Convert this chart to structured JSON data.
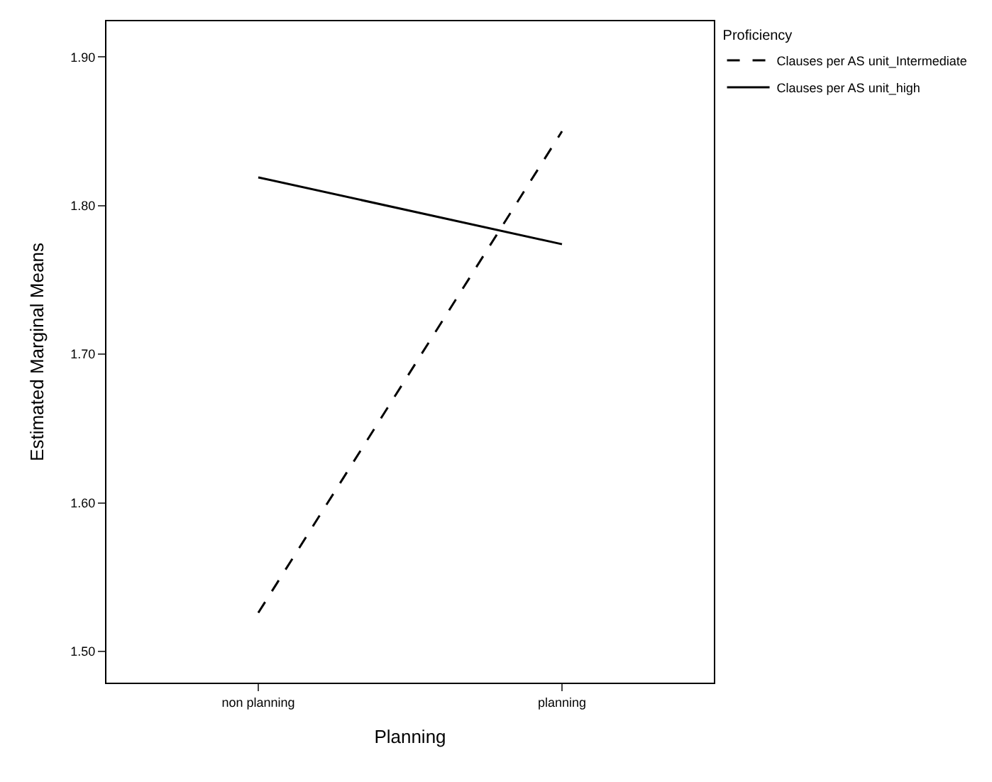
{
  "chart_data": {
    "type": "line",
    "xlabel": "Planning",
    "ylabel": "Estimated Marginal Means",
    "legend_title": "Proficiency",
    "categories": [
      "non planning",
      "planning"
    ],
    "series": [
      {
        "name": "Clauses per AS unit_Intermediate",
        "color": "#000000",
        "line_style": "dashed",
        "values": [
          1.526,
          1.85
        ]
      },
      {
        "name": "Clauses per AS unit_high",
        "color": "#000000",
        "line_style": "solid",
        "values": [
          1.819,
          1.774
        ]
      }
    ],
    "ylim": [
      1.479,
      1.924
    ],
    "yticks": [
      {
        "value": 1.5,
        "label": "1.50"
      },
      {
        "value": 1.6,
        "label": "1.60"
      },
      {
        "value": 1.7,
        "label": "1.70"
      },
      {
        "value": 1.8,
        "label": "1.80"
      },
      {
        "value": 1.9,
        "label": "1.90"
      }
    ],
    "legend": "top right",
    "marker": "none"
  }
}
